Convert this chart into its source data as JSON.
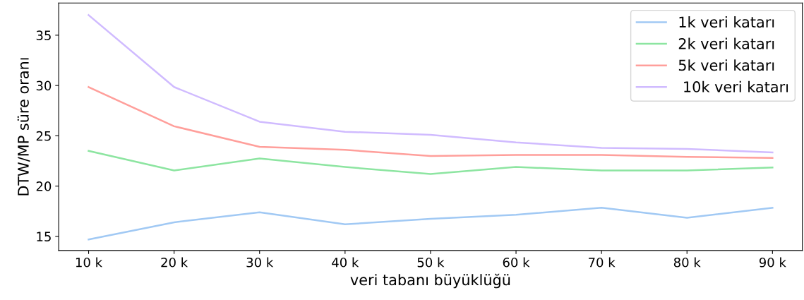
{
  "chart_data": {
    "type": "line",
    "xlabel": "veri tabanı büyüklüğü",
    "ylabel": "DTW/MP süre oranı",
    "categories": [
      "10 k",
      "20 k",
      "30 k",
      "40 k",
      "50 k",
      "60 k",
      "70 k",
      "80 k",
      "90 k"
    ],
    "series": [
      {
        "name": "1k veri katarı",
        "color": "#a1c9f4",
        "values": [
          14.7,
          16.4,
          17.4,
          16.2,
          16.75,
          17.15,
          17.85,
          16.85,
          17.85
        ]
      },
      {
        "name": "2k veri katarı",
        "color": "#8de5a1",
        "values": [
          23.5,
          21.55,
          22.75,
          21.9,
          21.2,
          21.9,
          21.55,
          21.55,
          21.85
        ]
      },
      {
        "name": "5k veri katarı",
        "color": "#ff9f9b",
        "values": [
          29.85,
          25.95,
          23.9,
          23.6,
          23.0,
          23.1,
          23.1,
          22.9,
          22.8
        ]
      },
      {
        "name": " 10k veri katarı",
        "color": "#d0bbff",
        "values": [
          37.0,
          29.85,
          26.4,
          25.4,
          25.1,
          24.35,
          23.8,
          23.7,
          23.35
        ]
      }
    ],
    "ylim": [
      13.6,
      38.2
    ],
    "yticks": [
      15,
      20,
      25,
      30,
      35
    ],
    "grid": false,
    "legend": "top right",
    "marker": "none",
    "line_style": "solid"
  }
}
